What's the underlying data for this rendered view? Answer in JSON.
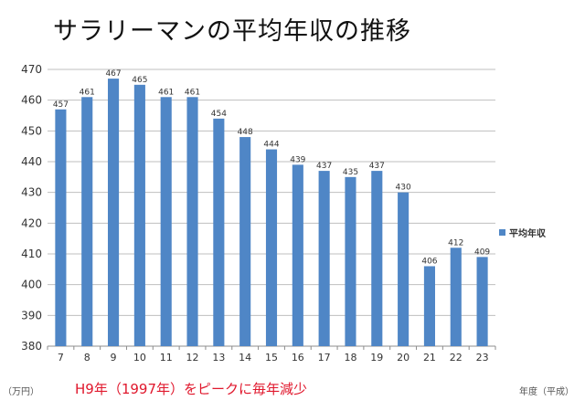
{
  "chart_data": {
    "type": "bar",
    "title": "サラリーマンの平均年収の推移",
    "categories": [
      "7",
      "8",
      "9",
      "10",
      "11",
      "12",
      "13",
      "14",
      "15",
      "16",
      "17",
      "18",
      "19",
      "20",
      "21",
      "22",
      "23"
    ],
    "series": [
      {
        "name": "平均年収",
        "values": [
          457,
          461,
          467,
          465,
          461,
          461,
          454,
          448,
          444,
          439,
          437,
          435,
          437,
          430,
          406,
          412,
          409
        ]
      }
    ],
    "ylim": [
      380,
      470
    ],
    "yticks": [
      "470",
      "460",
      "450",
      "440",
      "430",
      "420",
      "410",
      "400",
      "390",
      "380"
    ],
    "ylabel": "（万円）",
    "xlabel": "年度（平成）",
    "annotation": "H9年（1997年）をピークに毎年減少",
    "legend_position": "right",
    "grid": true,
    "bar_color": "#4f86c6",
    "annotation_color": "#e0182d"
  }
}
